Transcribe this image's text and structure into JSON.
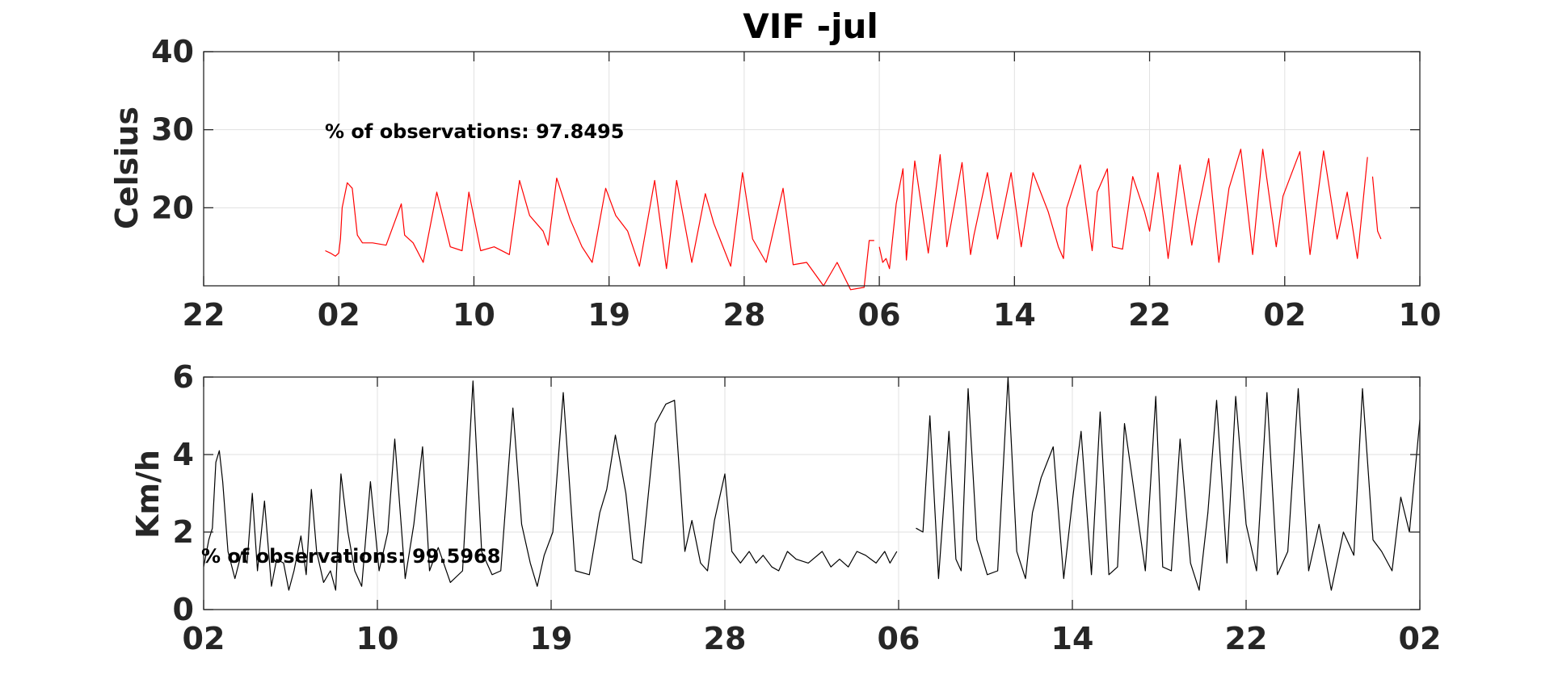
{
  "chart_data": [
    {
      "type": "line",
      "title": "VIF -jul",
      "ylabel": "Celsius",
      "xlabel": "",
      "ylim": [
        10,
        40
      ],
      "yticks": [
        20,
        30,
        40
      ],
      "xlim": [
        0,
        36
      ],
      "xtick_labels": [
        "22",
        "02",
        "10",
        "19",
        "28",
        "06",
        "14",
        "22",
        "02",
        "10"
      ],
      "annotation": "% of observations: 97.8495",
      "color": "#ff0000",
      "grid": true,
      "series": [
        {
          "x": [
            3.6,
            3.75,
            3.9,
            4.0,
            4.05,
            4.1,
            4.25,
            4.4,
            4.55,
            4.7,
            5.0,
            5.4,
            5.85,
            5.95,
            6.2,
            6.5,
            6.9,
            7.3,
            7.65,
            7.85,
            8.2,
            8.6,
            9.05,
            9.35,
            9.65,
            10.05,
            10.2,
            10.45,
            10.85,
            11.2,
            11.5,
            11.9,
            12.2,
            12.55,
            12.9,
            13.35,
            13.7,
            14.0,
            14.45,
            14.85,
            15.1,
            15.6,
            15.95,
            16.25,
            16.65,
            17.15,
            17.45,
            17.85,
            18.35,
            18.75,
            19.15,
            19.55,
            19.7,
            19.85
          ],
          "y": [
            14.5,
            14.2,
            13.8,
            14.2,
            16,
            20,
            23.2,
            22.5,
            16.5,
            15.5,
            15.5,
            15.2,
            20.5,
            16.5,
            15.5,
            13,
            22,
            15,
            14.5,
            22,
            14.5,
            15,
            14,
            23.5,
            19,
            17,
            15.2,
            23.8,
            18.5,
            15,
            13,
            22.5,
            19,
            17,
            12.5,
            23.5,
            12.2,
            23.5,
            13,
            21.8,
            18,
            12.5,
            24.5,
            16,
            13,
            22.5,
            12.7,
            13,
            10,
            13,
            9.5,
            9.8,
            15.8,
            15.8
          ]
        },
        {
          "x": [
            20.0,
            20.1,
            20.2,
            20.3,
            20.5,
            20.7,
            20.8,
            21.05,
            21.45,
            21.8,
            22.0,
            22.45,
            22.7,
            22.8,
            23.2,
            23.5,
            23.9,
            24.2,
            24.55,
            25.0,
            25.3,
            25.45,
            25.55,
            25.95,
            26.3,
            26.45,
            26.75,
            26.9,
            27.2,
            27.5,
            27.85,
            28.0,
            28.25,
            28.55,
            28.9,
            29.25,
            29.4,
            29.75,
            30.05,
            30.35,
            30.7,
            31.05,
            31.35,
            31.75,
            31.95,
            32.45,
            32.75,
            33.15,
            33.55,
            33.85,
            34.15,
            34.45
          ],
          "y": [
            15,
            13,
            13.5,
            12.2,
            20.5,
            25,
            13.3,
            26,
            14.2,
            26.8,
            15,
            25.8,
            14,
            16.5,
            24.5,
            16,
            24.5,
            15,
            24.5,
            19.5,
            15,
            13.5,
            20,
            25.5,
            14.5,
            22,
            25,
            15,
            14.7,
            24,
            19.5,
            17,
            24.5,
            13.5,
            25.5,
            15.2,
            19,
            26.3,
            13,
            22.5,
            27.5,
            14,
            27.5,
            15,
            21.5,
            27.2,
            14,
            27.3,
            16,
            22,
            13.5,
            26.5
          ]
        },
        {
          "x": [
            34.6,
            34.75,
            34.85
          ],
          "y": [
            24,
            17,
            16
          ]
        }
      ]
    },
    {
      "type": "line",
      "title": "",
      "ylabel": "Km/h",
      "xlabel": "",
      "ylim": [
        0,
        6
      ],
      "yticks": [
        0,
        2,
        4,
        6
      ],
      "xlim": [
        0,
        35
      ],
      "xtick_labels": [
        "02",
        "10",
        "19",
        "28",
        "06",
        "14",
        "22",
        "02"
      ],
      "annotation": "% of observations: 99.5968",
      "color": "#000000",
      "grid": true,
      "series": [
        {
          "x": [
            0.0,
            0.15,
            0.25,
            0.35,
            0.45,
            0.55,
            0.7,
            0.9,
            1.1,
            1.25,
            1.4,
            1.55,
            1.75,
            1.95,
            2.1,
            2.3,
            2.45,
            2.6,
            2.8,
            2.95,
            3.1,
            3.25,
            3.45,
            3.65,
            3.8,
            3.95,
            4.15,
            4.35,
            4.55,
            4.8,
            5.05,
            5.3,
            5.5,
            5.8,
            6.05,
            6.3,
            6.5,
            6.75,
            7.1,
            7.45,
            7.75,
            8.0,
            8.3,
            8.55,
            8.9,
            9.15,
            9.4,
            9.6,
            9.8,
            10.05,
            10.35,
            10.7,
            11.1,
            11.4,
            11.6,
            11.85,
            12.15,
            12.35,
            12.6,
            13.0,
            13.3,
            13.55,
            13.85,
            14.05,
            14.3,
            14.5,
            14.7,
            15.0,
            15.2,
            15.45,
            15.7,
            15.9,
            16.1,
            16.35,
            16.55,
            16.8,
            17.05,
            17.4,
            17.8,
            18.05,
            18.3,
            18.55,
            18.8,
            19.05,
            19.2,
            19.35,
            19.6,
            19.75,
            19.95
          ],
          "y": [
            1.1,
            1.8,
            2.1,
            3.8,
            4.1,
            3.3,
            1.5,
            0.8,
            1.5,
            1.2,
            3.0,
            1.0,
            2.8,
            0.6,
            1.3,
            1.2,
            0.5,
            1.0,
            1.9,
            0.9,
            3.1,
            1.5,
            0.7,
            1.0,
            0.5,
            3.5,
            2.0,
            1.0,
            0.6,
            3.3,
            1.0,
            2.0,
            4.4,
            0.8,
            2.2,
            4.2,
            1.0,
            1.6,
            0.7,
            1.0,
            5.9,
            1.5,
            0.9,
            1.0,
            5.2,
            2.2,
            1.2,
            0.6,
            1.4,
            2.0,
            5.6,
            1.0,
            0.9,
            2.5,
            3.1,
            4.5,
            3.0,
            1.3,
            1.2,
            4.8,
            5.3,
            5.4,
            1.5,
            2.3,
            1.2,
            1.0,
            2.3,
            3.5,
            1.5,
            1.2,
            1.5,
            1.2,
            1.4,
            1.1,
            1.0,
            1.5,
            1.3,
            1.2,
            1.5,
            1.1,
            1.3,
            1.1,
            1.5,
            1.4,
            1.3,
            1.2,
            1.5,
            1.2,
            1.5
          ]
        },
        {
          "x": [
            20.5,
            20.7,
            20.9,
            21.15,
            21.45,
            21.65,
            21.8,
            22.0,
            22.25,
            22.55,
            22.85,
            23.15,
            23.4,
            23.65,
            23.85,
            24.1,
            24.45,
            24.75,
            25.0,
            25.25,
            25.55,
            25.8,
            26.05,
            26.3,
            26.5,
            26.8,
            27.1,
            27.4,
            27.6,
            27.85,
            28.1,
            28.4,
            28.65,
            28.9,
            29.15,
            29.45,
            29.7,
            30.0,
            30.3,
            30.6,
            30.9,
            31.2,
            31.5,
            31.8,
            32.1,
            32.45,
            32.8,
            33.1,
            33.35,
            33.65,
            33.9,
            34.2,
            34.45,
            34.7,
            35.0
          ],
          "y": [
            2.1,
            2.0,
            5.0,
            0.8,
            4.6,
            1.3,
            1.0,
            5.7,
            1.8,
            0.9,
            1.0,
            6.0,
            1.5,
            0.8,
            2.5,
            3.4,
            4.2,
            0.8,
            2.8,
            4.6,
            0.9,
            5.1,
            0.9,
            1.1,
            4.8,
            2.9,
            1.0,
            5.5,
            1.1,
            1.0,
            4.4,
            1.2,
            0.5,
            2.5,
            5.4,
            1.2,
            5.5,
            2.2,
            1.0,
            5.6,
            0.9,
            1.5,
            5.7,
            1.0,
            2.2,
            0.5,
            2.0,
            1.4,
            5.7,
            1.8,
            1.5,
            1.0,
            2.9,
            2.0,
            4.9
          ]
        }
      ]
    }
  ]
}
